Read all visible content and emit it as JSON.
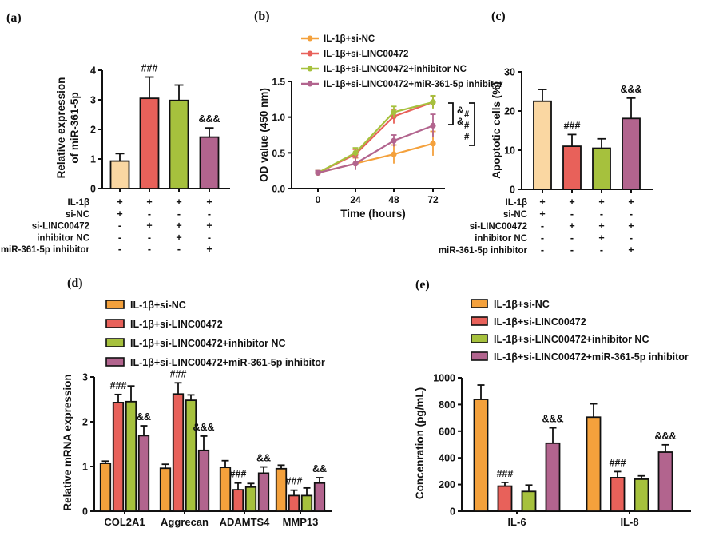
{
  "colors": {
    "peach": "#FAD7A2",
    "orange": "#F4A13C",
    "red": "#E8615A",
    "green": "#A6C13D",
    "mauve": "#B2648E",
    "axis": "#111111"
  },
  "treatment_matrix": {
    "row_labels": [
      "IL-1β",
      "si-NC",
      "si-LINC00472",
      "inhibitor NC",
      "miR-361-5p inhibitor"
    ],
    "rows": [
      [
        "+",
        "+",
        "+",
        "+"
      ],
      [
        "+",
        "-",
        "-",
        "-"
      ],
      [
        "-",
        "+",
        "+",
        "+"
      ],
      [
        "-",
        "-",
        "+",
        "-"
      ],
      [
        "-",
        "-",
        "-",
        "+"
      ]
    ]
  },
  "panels": {
    "a": {
      "label": "(a)",
      "chart_data": {
        "type": "bar",
        "ylabel_lines": [
          "Relative expression",
          "of miR-361-5p"
        ],
        "ylim": [
          0,
          4
        ],
        "yticks": [
          "0",
          "1",
          "2",
          "3",
          "4"
        ],
        "series_colors": [
          "peach",
          "red",
          "green",
          "mauve"
        ],
        "values": [
          0.93,
          3.05,
          2.98,
          1.74
        ],
        "errors": [
          0.25,
          0.72,
          0.52,
          0.31
        ],
        "annotations": [
          {
            "bar": 1,
            "text": "###"
          },
          {
            "bar": 3,
            "text": "&&&"
          }
        ],
        "has_matrix": true
      }
    },
    "b": {
      "label": "(b)",
      "chart_data": {
        "type": "line",
        "xlabel": "Time (hours)",
        "ylabel": "OD value (450 nm)",
        "x": [
          "0",
          "24",
          "48",
          "72"
        ],
        "ylim": [
          0,
          1.5
        ],
        "yticks": [
          "0.0",
          "0.5",
          "1.0",
          "1.5"
        ],
        "series": [
          {
            "name": "IL-1β+si-NC",
            "color": "orange",
            "values": [
              0.22,
              0.35,
              0.48,
              0.63
            ],
            "errors": [
              0.03,
              0.08,
              0.13,
              0.17
            ]
          },
          {
            "name": "IL-1β+si-LINC00472",
            "color": "red",
            "values": [
              0.22,
              0.48,
              1.01,
              1.21
            ],
            "errors": [
              0.03,
              0.07,
              0.1,
              0.08
            ]
          },
          {
            "name": "IL-1β+si-LINC00472+inhibitor NC",
            "color": "green",
            "values": [
              0.22,
              0.5,
              1.07,
              1.21
            ],
            "errors": [
              0.03,
              0.07,
              0.08,
              0.09
            ]
          },
          {
            "name": "IL-1β+si-LINC00472+miR-361-5p inhibitor",
            "color": "mauve",
            "values": [
              0.22,
              0.35,
              0.67,
              0.88
            ],
            "errors": [
              0.03,
              0.09,
              0.08,
              0.16
            ]
          }
        ],
        "annotation_brackets": [
          {
            "labels": [
              "&",
              "&"
            ]
          },
          {
            "labels": [
              "#",
              "#",
              "#"
            ]
          }
        ]
      }
    },
    "c": {
      "label": "(c)",
      "chart_data": {
        "type": "bar",
        "ylabel_lines": [
          "Apoptotic cells (%)"
        ],
        "ylim": [
          0,
          30
        ],
        "yticks": [
          "0",
          "10",
          "20",
          "30"
        ],
        "series_colors": [
          "peach",
          "red",
          "green",
          "mauve"
        ],
        "values": [
          22.5,
          11.0,
          10.5,
          18.1
        ],
        "errors": [
          3.0,
          3.0,
          2.4,
          5.2
        ],
        "annotations": [
          {
            "bar": 1,
            "text": "###"
          },
          {
            "bar": 3,
            "text": "&&&"
          }
        ],
        "has_matrix": true
      }
    },
    "d": {
      "label": "(d)",
      "chart_data": {
        "type": "grouped_bar",
        "ylabel": "Relative mRNA expression",
        "ylim": [
          0,
          3
        ],
        "yticks": [
          "0",
          "1",
          "2",
          "3"
        ],
        "categories": [
          "COL2A1",
          "Aggrecan",
          "ADAMTS4",
          "MMP13"
        ],
        "series": [
          {
            "name": "IL-1β+si-NC",
            "color": "orange",
            "values": [
              1.07,
              0.96,
              0.98,
              0.95
            ],
            "errors": [
              0.05,
              0.09,
              0.15,
              0.08
            ]
          },
          {
            "name": "IL-1β+si-LINC00472",
            "color": "red",
            "values": [
              2.43,
              2.62,
              0.48,
              0.35
            ],
            "errors": [
              0.18,
              0.25,
              0.15,
              0.12
            ]
          },
          {
            "name": "IL-1β+si-LINC00472+inhibitor NC",
            "color": "green",
            "values": [
              2.45,
              2.48,
              0.54,
              0.35
            ],
            "errors": [
              0.35,
              0.12,
              0.08,
              0.17
            ]
          },
          {
            "name": "IL-1β+si-LINC00472+miR-361-5p inhibitor",
            "color": "mauve",
            "values": [
              1.69,
              1.36,
              0.85,
              0.63
            ],
            "errors": [
              0.22,
              0.32,
              0.14,
              0.12
            ]
          }
        ],
        "annotations": [
          {
            "category": 0,
            "series": 1,
            "text": "###"
          },
          {
            "category": 0,
            "series": 3,
            "text": "&&"
          },
          {
            "category": 1,
            "series": 1,
            "text": "###"
          },
          {
            "category": 1,
            "series": 3,
            "text": "&&&"
          },
          {
            "category": 2,
            "series": 1,
            "text": "###"
          },
          {
            "category": 2,
            "series": 3,
            "text": "&&"
          },
          {
            "category": 3,
            "series": 1,
            "text": "###"
          },
          {
            "category": 3,
            "series": 3,
            "text": "&&"
          }
        ]
      }
    },
    "e": {
      "label": "(e)",
      "chart_data": {
        "type": "grouped_bar",
        "ylabel": "Concenration (pg/mL)",
        "ylim": [
          0,
          1000
        ],
        "yticks": [
          "0",
          "200",
          "400",
          "600",
          "800",
          "1000"
        ],
        "categories": [
          "IL-6",
          "IL-8"
        ],
        "series": [
          {
            "name": "IL-1β+si-NC",
            "color": "orange",
            "values": [
              838,
              705
            ],
            "errors": [
              108,
              100
            ]
          },
          {
            "name": "IL-1β+si-LINC00472",
            "color": "red",
            "values": [
              188,
              252
            ],
            "errors": [
              28,
              45
            ]
          },
          {
            "name": "IL-1β+si-LINC00472+inhibitor NC",
            "color": "green",
            "values": [
              148,
              240
            ],
            "errors": [
              48,
              25
            ]
          },
          {
            "name": "IL-1β+si-LINC00472+miR-361-5p inhibitor",
            "color": "mauve",
            "values": [
              510,
              443
            ],
            "errors": [
              115,
              55
            ]
          }
        ],
        "annotations": [
          {
            "category": 0,
            "series": 1,
            "text": "###"
          },
          {
            "category": 0,
            "series": 3,
            "text": "&&&"
          },
          {
            "category": 1,
            "series": 1,
            "text": "###"
          },
          {
            "category": 1,
            "series": 3,
            "text": "&&&"
          }
        ]
      }
    }
  }
}
